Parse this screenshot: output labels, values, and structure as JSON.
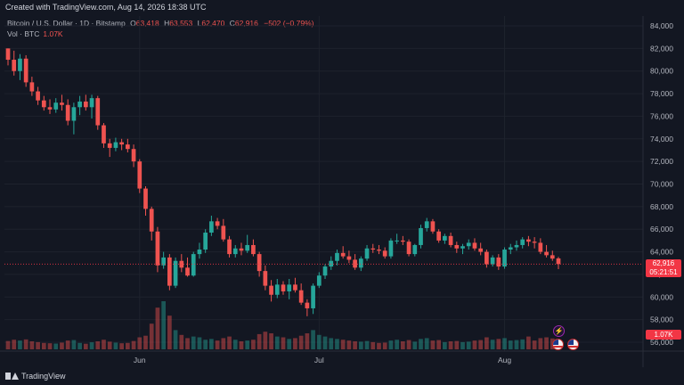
{
  "header": {
    "created": "Created with TradingView.com, Aug 14, 2026 18:38 UTC"
  },
  "legend": {
    "symbol": "Bitcoin / U.S. Dollar · 1D · Bitstamp",
    "open_key": "O",
    "open": "63,418",
    "high_key": "H",
    "high": "63,553",
    "low_key": "L",
    "low": "62,470",
    "close_key": "C",
    "close": "62,916",
    "change": "−502 (−0.79%)",
    "vol_label": "Vol · BTC",
    "vol_value": "1.07K"
  },
  "price_tag": {
    "price": "62,916",
    "countdown": "05:21:51"
  },
  "volume_tag": "1.07K",
  "footer": {
    "brand": "TradingView"
  },
  "colors": {
    "up": "#26a69a",
    "down": "#ef5350",
    "background": "#131722",
    "grid": "#1e222d",
    "price_line": "#f23645"
  },
  "chart_data": {
    "type": "candlestick",
    "y_ticks": [
      "84,000",
      "82,000",
      "80,000",
      "78,000",
      "76,000",
      "74,000",
      "72,000",
      "70,000",
      "68,000",
      "66,000",
      "64,000",
      "62,000",
      "60,000",
      "58,000",
      "56,000"
    ],
    "ylim": [
      56000,
      84500
    ],
    "x_ticks": [
      {
        "label": "Jun",
        "index": 22
      },
      {
        "label": "Jul",
        "index": 52
      },
      {
        "label": "Aug",
        "index": 83
      }
    ],
    "last_price": 62916,
    "candles": [
      [
        82000,
        82000,
        80500,
        81000,
        0.52
      ],
      [
        81000,
        81800,
        79600,
        80000,
        0.6
      ],
      [
        80000,
        81500,
        79200,
        81100,
        0.55
      ],
      [
        81100,
        81400,
        78600,
        79000,
        0.62
      ],
      [
        79000,
        79500,
        77800,
        78200,
        0.5
      ],
      [
        78200,
        78600,
        77000,
        77400,
        0.45
      ],
      [
        77400,
        77800,
        76500,
        76800,
        0.4
      ],
      [
        76800,
        77500,
        76200,
        76600,
        0.38
      ],
      [
        76600,
        77600,
        76300,
        77200,
        0.36
      ],
      [
        77200,
        77900,
        76500,
        77000,
        0.42
      ],
      [
        77000,
        77500,
        75200,
        75600,
        0.55
      ],
      [
        75600,
        77200,
        74400,
        76800,
        0.58
      ],
      [
        76800,
        77800,
        76100,
        77300,
        0.4
      ],
      [
        77300,
        77900,
        76500,
        76800,
        0.35
      ],
      [
        76800,
        77900,
        75800,
        77600,
        0.44
      ],
      [
        77600,
        77800,
        74800,
        75200,
        0.5
      ],
      [
        75200,
        75400,
        73200,
        73600,
        0.6
      ],
      [
        73600,
        74000,
        72400,
        73200,
        0.48
      ],
      [
        73200,
        74100,
        72900,
        73700,
        0.42
      ],
      [
        73700,
        74000,
        73000,
        73500,
        0.38
      ],
      [
        73500,
        74000,
        72800,
        73100,
        0.4
      ],
      [
        73100,
        73500,
        71500,
        72000,
        0.52
      ],
      [
        72000,
        72200,
        69200,
        69600,
        0.75
      ],
      [
        69600,
        69800,
        67200,
        67800,
        0.85
      ],
      [
        67800,
        68000,
        65000,
        65800,
        1.6
      ],
      [
        65800,
        66200,
        62200,
        62800,
        2.6
      ],
      [
        62800,
        64000,
        62500,
        63500,
        3.0
      ],
      [
        63500,
        63800,
        60600,
        61000,
        2.1
      ],
      [
        61000,
        63500,
        60800,
        63200,
        1.2
      ],
      [
        63200,
        63800,
        62200,
        62600,
        0.9
      ],
      [
        62600,
        63500,
        61800,
        61900,
        0.7
      ],
      [
        61900,
        64000,
        61800,
        63800,
        0.8
      ],
      [
        63800,
        64800,
        63400,
        64200,
        0.75
      ],
      [
        64200,
        66000,
        63900,
        65700,
        0.6
      ],
      [
        65700,
        67200,
        65400,
        66700,
        0.65
      ],
      [
        66700,
        67000,
        66000,
        66300,
        0.55
      ],
      [
        66300,
        66900,
        64900,
        65100,
        0.7
      ],
      [
        65100,
        65400,
        63500,
        63800,
        0.8
      ],
      [
        63800,
        64600,
        63500,
        64300,
        0.6
      ],
      [
        64300,
        64800,
        63700,
        64100,
        0.5
      ],
      [
        64100,
        65500,
        63900,
        64600,
        0.55
      ],
      [
        64600,
        65100,
        63600,
        63800,
        0.6
      ],
      [
        63800,
        64000,
        61800,
        62300,
        0.95
      ],
      [
        62300,
        62800,
        60600,
        61000,
        1.1
      ],
      [
        61000,
        61500,
        59600,
        60200,
        1.0
      ],
      [
        60200,
        61600,
        59900,
        61100,
        0.8
      ],
      [
        61100,
        61400,
        60200,
        60500,
        0.75
      ],
      [
        60500,
        61600,
        59800,
        61100,
        0.65
      ],
      [
        61100,
        61700,
        60400,
        60600,
        0.7
      ],
      [
        60600,
        61200,
        59300,
        59500,
        0.85
      ],
      [
        59500,
        59800,
        58300,
        59000,
        1.0
      ],
      [
        59000,
        61200,
        58500,
        61000,
        1.2
      ],
      [
        61000,
        62200,
        60800,
        61900,
        0.9
      ],
      [
        61900,
        62900,
        61600,
        62700,
        0.8
      ],
      [
        62700,
        63600,
        62400,
        63200,
        0.7
      ],
      [
        63200,
        64200,
        62800,
        63900,
        0.65
      ],
      [
        63900,
        64500,
        63400,
        63600,
        0.6
      ],
      [
        63600,
        64100,
        63000,
        63300,
        0.55
      ],
      [
        63300,
        63800,
        62400,
        62600,
        0.5
      ],
      [
        62600,
        63600,
        62300,
        63400,
        0.48
      ],
      [
        63400,
        64600,
        63200,
        64300,
        0.52
      ],
      [
        64300,
        64700,
        63900,
        64200,
        0.45
      ],
      [
        64200,
        64600,
        63800,
        64100,
        0.4
      ],
      [
        64100,
        64400,
        63400,
        63600,
        0.42
      ],
      [
        63600,
        65200,
        63400,
        65000,
        0.55
      ],
      [
        65000,
        65600,
        64700,
        65000,
        0.6
      ],
      [
        65000,
        65400,
        64600,
        64900,
        0.5
      ],
      [
        64900,
        65100,
        63600,
        63800,
        0.58
      ],
      [
        63800,
        64700,
        63600,
        64600,
        0.48
      ],
      [
        64600,
        66400,
        64300,
        66100,
        0.65
      ],
      [
        66100,
        67000,
        65800,
        66700,
        0.7
      ],
      [
        66700,
        66900,
        65600,
        65800,
        0.55
      ],
      [
        65800,
        66000,
        64800,
        65000,
        0.58
      ],
      [
        65000,
        65600,
        64700,
        65400,
        0.45
      ],
      [
        65400,
        65700,
        64400,
        64600,
        0.5
      ],
      [
        64600,
        64900,
        63900,
        64300,
        0.52
      ],
      [
        64300,
        64700,
        63800,
        64500,
        0.45
      ],
      [
        64500,
        65100,
        64200,
        64800,
        0.48
      ],
      [
        64800,
        65200,
        64100,
        64300,
        0.55
      ],
      [
        64300,
        64800,
        63700,
        64000,
        0.58
      ],
      [
        64000,
        64200,
        62600,
        62900,
        0.75
      ],
      [
        62900,
        63700,
        62700,
        63500,
        0.6
      ],
      [
        63500,
        63800,
        62400,
        62700,
        0.65
      ],
      [
        62700,
        64400,
        62500,
        64200,
        0.7
      ],
      [
        64200,
        64700,
        63800,
        64400,
        0.55
      ],
      [
        64400,
        65000,
        64100,
        64600,
        0.58
      ],
      [
        64600,
        65300,
        64300,
        65100,
        0.62
      ],
      [
        65100,
        65400,
        64500,
        64900,
        0.8
      ],
      [
        64900,
        65300,
        64300,
        64800,
        0.55
      ],
      [
        64800,
        65200,
        63800,
        64000,
        0.7
      ],
      [
        64000,
        64600,
        63500,
        63700,
        0.75
      ],
      [
        63700,
        64100,
        63200,
        63400,
        0.68
      ],
      [
        63418,
        63553,
        62470,
        62916,
        0.38
      ]
    ]
  }
}
